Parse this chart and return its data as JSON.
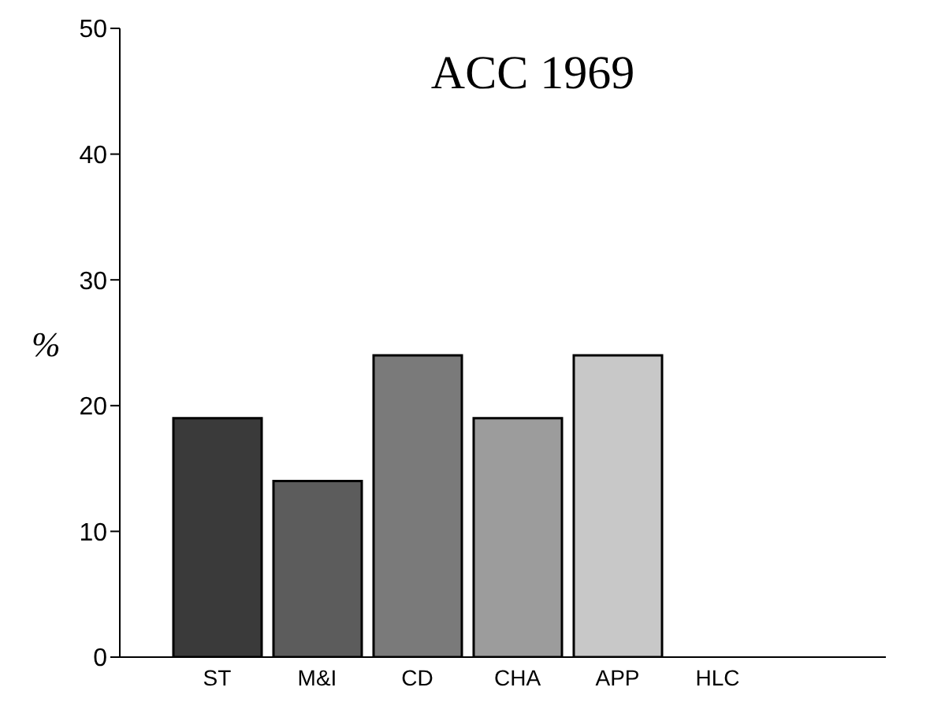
{
  "chart_data": {
    "type": "bar",
    "title": "ACC 1969",
    "ylabel": "%",
    "categories": [
      "ST",
      "M&I",
      "CD",
      "CHA",
      "APP",
      "HLC"
    ],
    "values": [
      19,
      14,
      24,
      19,
      24,
      0
    ],
    "colors": [
      "#3a3a3a",
      "#5c5c5c",
      "#7a7a7a",
      "#9c9c9c",
      "#c8c8c8",
      "#e0e0e0"
    ],
    "ylim": [
      0,
      50
    ],
    "yticks": [
      0,
      10,
      20,
      30,
      40,
      50
    ],
    "grid": false,
    "legend": false
  }
}
